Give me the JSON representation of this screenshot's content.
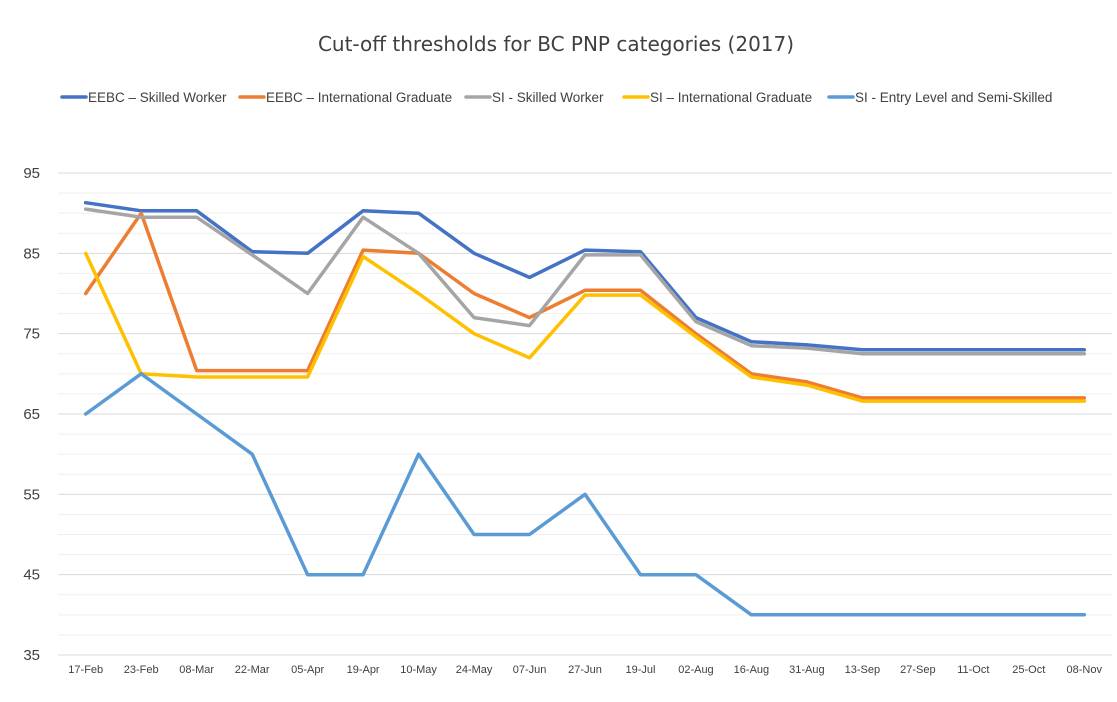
{
  "chart_data": {
    "type": "line",
    "title": "Cut-off thresholds for BC PNP categories (2017)",
    "xlabel": "",
    "ylabel": "",
    "ylim": [
      35,
      95
    ],
    "yticks": [
      35,
      45,
      55,
      65,
      75,
      85,
      95
    ],
    "grid": true,
    "legend_position": "top",
    "categories": [
      "17-Feb",
      "23-Feb",
      "08-Mar",
      "22-Mar",
      "05-Apr",
      "19-Apr",
      "10-May",
      "24-May",
      "07-Jun",
      "27-Jun",
      "19-Jul",
      "02-Aug",
      "16-Aug",
      "31-Aug",
      "13-Sep",
      "27-Sep",
      "11-Oct",
      "25-Oct",
      "08-Nov"
    ],
    "series": [
      {
        "name": "EEBC – Skilled Worker",
        "color": "#4472C4",
        "values": [
          91.3,
          90.3,
          90.3,
          85.2,
          85.0,
          90.3,
          90.0,
          85.0,
          82.0,
          85.4,
          85.2,
          77.0,
          74.0,
          73.6,
          73.0,
          73.0,
          73.0,
          73.0,
          73.0
        ]
      },
      {
        "name": "EEBC – International Graduate",
        "color": "#ED7D31",
        "values": [
          80.0,
          90.0,
          70.4,
          70.4,
          70.4,
          85.4,
          85.0,
          80.0,
          77.0,
          80.4,
          80.4,
          75.0,
          70.0,
          69.0,
          67.0,
          67.0,
          67.0,
          67.0,
          67.0
        ]
      },
      {
        "name": "SI - Skilled Worker",
        "color": "#A5A5A5",
        "values": [
          90.5,
          89.5,
          89.5,
          84.8,
          80.0,
          89.5,
          85.0,
          77.0,
          76.0,
          84.8,
          84.8,
          76.5,
          73.5,
          73.2,
          72.5,
          72.5,
          72.5,
          72.5,
          72.5
        ]
      },
      {
        "name": "SI – International Graduate",
        "color": "#FFC000",
        "values": [
          85.0,
          70.0,
          69.6,
          69.6,
          69.6,
          84.6,
          80.0,
          75.0,
          72.0,
          79.8,
          79.8,
          74.6,
          69.6,
          68.6,
          66.6,
          66.6,
          66.6,
          66.6,
          66.6
        ]
      },
      {
        "name": "SI - Entry Level and Semi-Skilled",
        "color": "#5B9BD5",
        "values": [
          65,
          70,
          65,
          60,
          45,
          45,
          60,
          50,
          50,
          55,
          45,
          45,
          40,
          40,
          40,
          40,
          40,
          40,
          40
        ]
      }
    ]
  }
}
